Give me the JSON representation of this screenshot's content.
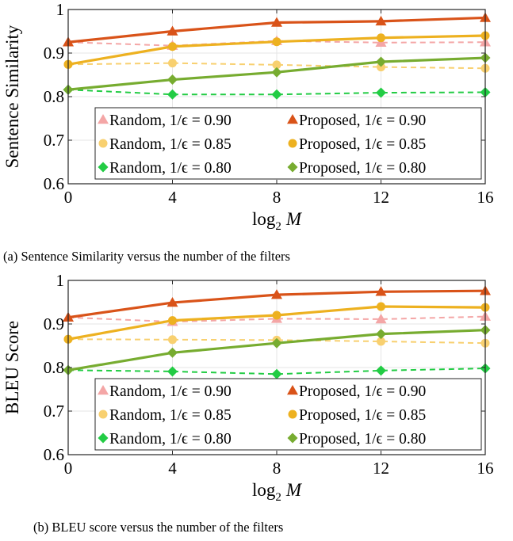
{
  "colors": {
    "eps090": "#D95319",
    "eps085": "#EDB120",
    "eps080": "#77AC30",
    "rand090": "#F4A6A6",
    "rand085": "#F8D070",
    "rand080": "#22CC44",
    "grid": "#e6e6e6"
  },
  "chart_data": [
    {
      "type": "line",
      "title": "",
      "xlabel": "log",
      "xlabel_sub": "2",
      "xlabel_var": "M",
      "ylabel": "Sentence Similarity",
      "caption": "(a) Sentence Similarity versus the number of the filters",
      "x": [
        0,
        4,
        8,
        12,
        16
      ],
      "xlim": [
        0,
        16
      ],
      "ylim": [
        0.6,
        1
      ],
      "xticks": [
        "0",
        "4",
        "8",
        "12",
        "16"
      ],
      "yticks": [
        {
          "v": 0.6,
          "label": "0.6"
        },
        {
          "v": 0.7,
          "label": "0.7"
        },
        {
          "v": 0.8,
          "label": "0.8"
        },
        {
          "v": 0.9,
          "label": "0.9"
        },
        {
          "v": 1,
          "label": "1"
        }
      ],
      "grid": true,
      "legend_placement": "bottom-right",
      "series": [
        {
          "name": "Random, 1/ϵ = 0.90",
          "kind": "random",
          "marker": "triangle",
          "color": "#F4A6A6",
          "values": [
            0.925,
            0.917,
            0.928,
            0.924,
            0.925
          ]
        },
        {
          "name": "Proposed, 1/ϵ = 0.90",
          "kind": "proposed",
          "marker": "triangle",
          "color": "#D95319",
          "values": [
            0.925,
            0.95,
            0.97,
            0.973,
            0.981
          ]
        },
        {
          "name": "Random, 1/ϵ = 0.85",
          "kind": "random",
          "marker": "circle",
          "color": "#F8D070",
          "values": [
            0.874,
            0.877,
            0.873,
            0.868,
            0.865
          ]
        },
        {
          "name": "Proposed, 1/ϵ = 0.85",
          "kind": "proposed",
          "marker": "circle",
          "color": "#EDB120",
          "values": [
            0.874,
            0.915,
            0.926,
            0.935,
            0.94
          ]
        },
        {
          "name": "Random, 1/ϵ = 0.80",
          "kind": "random",
          "marker": "diamond",
          "color": "#22CC44",
          "values": [
            0.816,
            0.805,
            0.805,
            0.809,
            0.81
          ]
        },
        {
          "name": "Proposed, 1/ϵ = 0.80",
          "kind": "proposed",
          "marker": "diamond",
          "color": "#77AC30",
          "values": [
            0.816,
            0.839,
            0.856,
            0.88,
            0.889
          ]
        }
      ]
    },
    {
      "type": "line",
      "title": "",
      "xlabel": "log",
      "xlabel_sub": "2",
      "xlabel_var": "M",
      "ylabel": "BLEU Score",
      "caption": "(b) BLEU score versus the number of the filters",
      "x": [
        0,
        4,
        8,
        12,
        16
      ],
      "xlim": [
        0,
        16
      ],
      "ylim": [
        0.6,
        1
      ],
      "xticks": [
        "0",
        "4",
        "8",
        "12",
        "16"
      ],
      "yticks": [
        {
          "v": 0.6,
          "label": "0.6"
        },
        {
          "v": 0.7,
          "label": "0.7"
        },
        {
          "v": 0.8,
          "label": "0.8"
        },
        {
          "v": 0.9,
          "label": "0.9"
        },
        {
          "v": 1,
          "label": "1"
        }
      ],
      "grid": true,
      "legend_placement": "bottom-right",
      "series": [
        {
          "name": "Random, 1/ϵ = 0.90",
          "kind": "random",
          "marker": "triangle",
          "color": "#F4A6A6",
          "values": [
            0.915,
            0.905,
            0.912,
            0.911,
            0.917
          ]
        },
        {
          "name": "Proposed, 1/ϵ = 0.90",
          "kind": "proposed",
          "marker": "triangle",
          "color": "#D95319",
          "values": [
            0.915,
            0.949,
            0.967,
            0.974,
            0.976
          ]
        },
        {
          "name": "Random, 1/ϵ = 0.85",
          "kind": "random",
          "marker": "circle",
          "color": "#F8D070",
          "values": [
            0.865,
            0.864,
            0.863,
            0.86,
            0.856
          ]
        },
        {
          "name": "Proposed, 1/ϵ = 0.85",
          "kind": "proposed",
          "marker": "circle",
          "color": "#EDB120",
          "values": [
            0.865,
            0.908,
            0.92,
            0.94,
            0.938
          ]
        },
        {
          "name": "Random, 1/ϵ = 0.80",
          "kind": "random",
          "marker": "diamond",
          "color": "#22CC44",
          "values": [
            0.794,
            0.791,
            0.785,
            0.793,
            0.798
          ]
        },
        {
          "name": "Proposed, 1/ϵ = 0.80",
          "kind": "proposed",
          "marker": "diamond",
          "color": "#77AC30",
          "values": [
            0.794,
            0.834,
            0.856,
            0.877,
            0.886
          ]
        }
      ]
    }
  ]
}
